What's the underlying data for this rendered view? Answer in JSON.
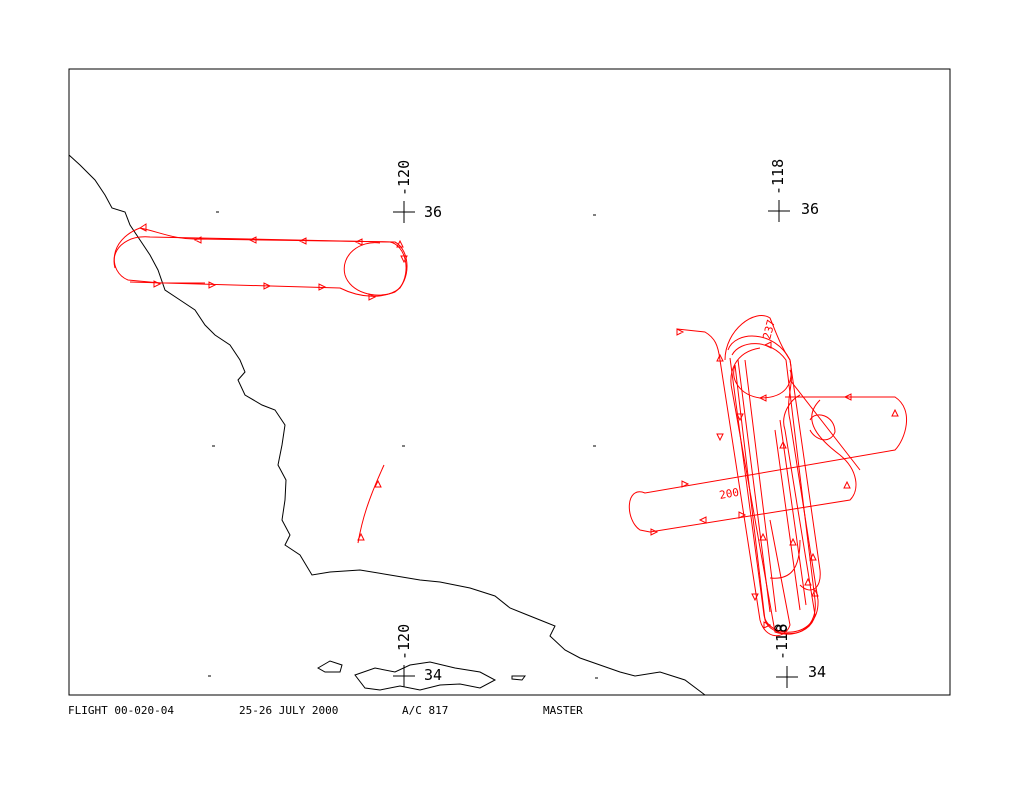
{
  "footer": {
    "flight": "FLIGHT 00-020-04",
    "date": "25-26 JULY 2000",
    "aircraft": "A/C 817",
    "mode": "MASTER"
  },
  "grid_labels": {
    "lon_west": "-120",
    "lon_east": "-118",
    "lat_north": "36",
    "lat_south": "34"
  },
  "track_labels": [
    "237",
    "200"
  ],
  "colors": {
    "track": "#ff0000",
    "coastline": "#000000",
    "frame": "#000000"
  }
}
